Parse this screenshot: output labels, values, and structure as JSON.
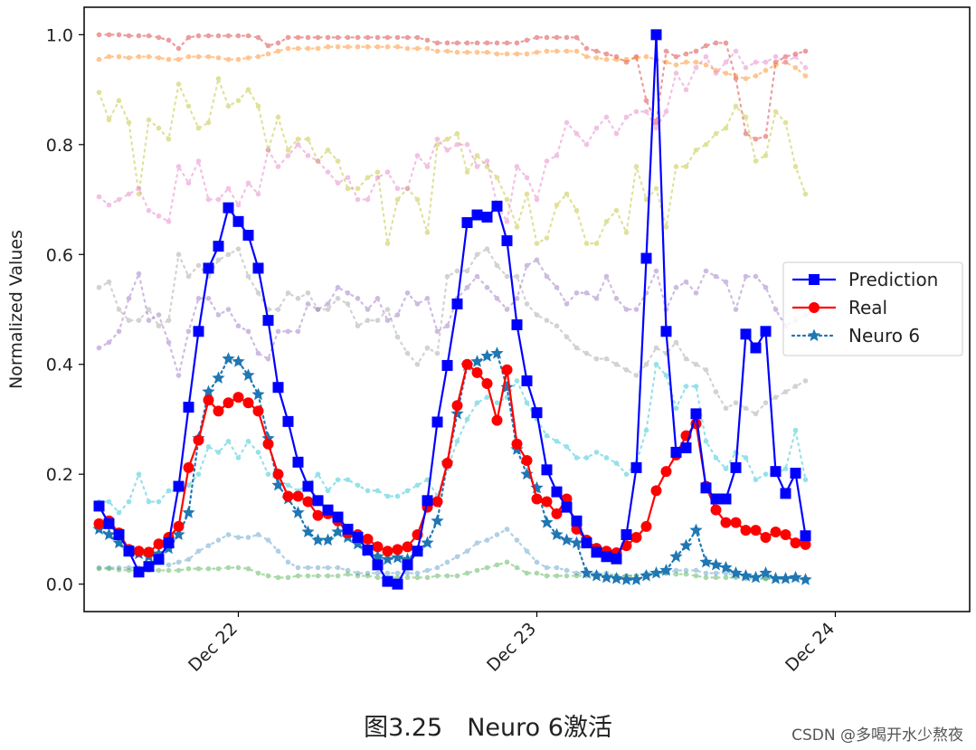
{
  "chart_data": {
    "type": "line",
    "title": "",
    "xlabel": "",
    "ylabel": "Normalized Values",
    "ylim": [
      -0.05,
      1.05
    ],
    "yticks": [
      "0.0",
      "0.2",
      "0.4",
      "0.6",
      "0.8",
      "1.0"
    ],
    "ytick_values": [
      0.0,
      0.2,
      0.4,
      0.6,
      0.8,
      1.0
    ],
    "xticks": [
      "Dec 22",
      "Dec 23",
      "Dec 24"
    ],
    "xtick_values": [
      8,
      38,
      68
    ],
    "x_range": [
      -7.5,
      81.5
    ],
    "x_start": -6,
    "x_step": 1,
    "grid": false,
    "legend_position": "right",
    "series": [
      {
        "name": "Prediction",
        "color": "#0000ff",
        "marker": "square",
        "linestyle": "solid",
        "values": [
          0.142,
          0.11,
          0.09,
          0.06,
          0.022,
          0.032,
          0.045,
          0.075,
          0.178,
          0.322,
          0.46,
          0.575,
          0.615,
          0.685,
          0.66,
          0.635,
          0.575,
          0.48,
          0.358,
          0.296,
          0.222,
          0.178,
          0.152,
          0.135,
          0.122,
          0.1,
          0.085,
          0.062,
          0.035,
          0.005,
          0.0,
          0.035,
          0.06,
          0.152,
          0.295,
          0.398,
          0.51,
          0.658,
          0.672,
          0.668,
          0.688,
          0.625,
          0.472,
          0.37,
          0.312,
          0.208,
          0.168,
          0.14,
          0.115,
          0.075,
          0.058,
          0.05,
          0.046,
          0.09,
          0.212,
          0.593,
          1.0,
          0.46,
          0.24,
          0.248,
          0.31,
          0.175,
          0.155,
          0.155,
          0.212,
          0.455,
          0.43,
          0.46,
          0.205,
          0.165,
          0.202,
          0.088
        ]
      },
      {
        "name": "Real",
        "color": "#ff0000",
        "marker": "circle",
        "linestyle": "solid",
        "values": [
          0.11,
          0.115,
          0.093,
          0.063,
          0.06,
          0.058,
          0.073,
          0.085,
          0.105,
          0.212,
          0.262,
          0.335,
          0.315,
          0.33,
          0.34,
          0.33,
          0.315,
          0.255,
          0.2,
          0.16,
          0.16,
          0.15,
          0.125,
          0.128,
          0.115,
          0.093,
          0.09,
          0.082,
          0.068,
          0.06,
          0.063,
          0.068,
          0.09,
          0.14,
          0.15,
          0.22,
          0.325,
          0.4,
          0.385,
          0.365,
          0.298,
          0.39,
          0.255,
          0.225,
          0.155,
          0.15,
          0.128,
          0.155,
          0.1,
          0.08,
          0.065,
          0.06,
          0.057,
          0.07,
          0.085,
          0.105,
          0.17,
          0.205,
          0.235,
          0.27,
          0.292,
          0.178,
          0.135,
          0.112,
          0.112,
          0.098,
          0.098,
          0.085,
          0.095,
          0.09,
          0.075,
          0.072
        ]
      },
      {
        "name": "Neuro 6",
        "color": "#1f77b4",
        "marker": "star",
        "linestyle": "dotted",
        "values": [
          0.1,
          0.09,
          0.075,
          0.06,
          0.055,
          0.05,
          0.055,
          0.065,
          0.09,
          0.13,
          0.265,
          0.35,
          0.375,
          0.41,
          0.405,
          0.38,
          0.345,
          0.265,
          0.18,
          0.155,
          0.13,
          0.095,
          0.08,
          0.08,
          0.095,
          0.085,
          0.073,
          0.06,
          0.05,
          0.045,
          0.048,
          0.045,
          0.06,
          0.075,
          0.115,
          0.22,
          0.31,
          0.398,
          0.405,
          0.415,
          0.42,
          0.358,
          0.245,
          0.2,
          0.175,
          0.112,
          0.09,
          0.08,
          0.075,
          0.02,
          0.015,
          0.012,
          0.01,
          0.008,
          0.008,
          0.015,
          0.02,
          0.025,
          0.05,
          0.07,
          0.098,
          0.04,
          0.035,
          0.03,
          0.02,
          0.015,
          0.012,
          0.02,
          0.01,
          0.01,
          0.012,
          0.008
        ]
      },
      {
        "color": "#d62728",
        "opacity": 0.45,
        "values": [
          1.0,
          1.0,
          1.0,
          0.998,
          0.998,
          0.998,
          0.995,
          0.99,
          0.975,
          0.995,
          0.998,
          0.998,
          0.998,
          0.998,
          0.998,
          0.998,
          0.995,
          0.98,
          0.985,
          0.995,
          0.995,
          0.995,
          0.995,
          0.995,
          0.995,
          0.995,
          0.995,
          0.995,
          0.995,
          0.995,
          0.995,
          0.995,
          0.995,
          0.99,
          0.985,
          0.985,
          0.985,
          0.985,
          0.985,
          0.985,
          0.985,
          0.985,
          0.985,
          0.99,
          0.995,
          0.995,
          0.995,
          0.995,
          0.995,
          0.975,
          0.97,
          0.965,
          0.96,
          0.95,
          0.96,
          0.88,
          0.84,
          0.97,
          0.96,
          0.965,
          0.97,
          0.98,
          0.985,
          0.985,
          0.92,
          0.82,
          0.81,
          0.815,
          0.95,
          0.96,
          0.965,
          0.97
        ]
      },
      {
        "color": "#ff7f0e",
        "opacity": 0.45,
        "values": [
          0.955,
          0.96,
          0.96,
          0.958,
          0.96,
          0.96,
          0.958,
          0.955,
          0.955,
          0.96,
          0.96,
          0.96,
          0.958,
          0.955,
          0.955,
          0.958,
          0.96,
          0.965,
          0.97,
          0.975,
          0.975,
          0.975,
          0.975,
          0.978,
          0.978,
          0.978,
          0.978,
          0.978,
          0.978,
          0.978,
          0.978,
          0.975,
          0.975,
          0.975,
          0.97,
          0.97,
          0.968,
          0.968,
          0.968,
          0.968,
          0.965,
          0.965,
          0.965,
          0.965,
          0.968,
          0.97,
          0.97,
          0.97,
          0.97,
          0.96,
          0.958,
          0.955,
          0.955,
          0.955,
          0.958,
          0.96,
          0.955,
          0.95,
          0.945,
          0.95,
          0.95,
          0.945,
          0.935,
          0.93,
          0.925,
          0.92,
          0.925,
          0.935,
          0.945,
          0.95,
          0.94,
          0.925
        ]
      },
      {
        "color": "#bcbd22",
        "opacity": 0.45,
        "values": [
          0.895,
          0.845,
          0.88,
          0.84,
          0.71,
          0.845,
          0.83,
          0.81,
          0.91,
          0.87,
          0.83,
          0.84,
          0.92,
          0.87,
          0.88,
          0.9,
          0.87,
          0.79,
          0.85,
          0.79,
          0.81,
          0.81,
          0.77,
          0.79,
          0.77,
          0.72,
          0.72,
          0.74,
          0.75,
          0.62,
          0.7,
          0.72,
          0.7,
          0.64,
          0.8,
          0.81,
          0.82,
          0.75,
          0.78,
          0.76,
          0.74,
          0.7,
          0.65,
          0.71,
          0.62,
          0.63,
          0.69,
          0.71,
          0.68,
          0.62,
          0.62,
          0.66,
          0.68,
          0.64,
          0.76,
          0.7,
          0.72,
          0.65,
          0.76,
          0.76,
          0.79,
          0.8,
          0.82,
          0.83,
          0.87,
          0.85,
          0.77,
          0.78,
          0.86,
          0.84,
          0.76,
          0.71
        ]
      },
      {
        "color": "#e377c2",
        "opacity": 0.45,
        "values": [
          0.705,
          0.69,
          0.7,
          0.71,
          0.72,
          0.68,
          0.67,
          0.66,
          0.76,
          0.73,
          0.77,
          0.7,
          0.7,
          0.72,
          0.69,
          0.73,
          0.71,
          0.79,
          0.76,
          0.78,
          0.8,
          0.78,
          0.77,
          0.75,
          0.73,
          0.74,
          0.7,
          0.7,
          0.74,
          0.75,
          0.72,
          0.72,
          0.78,
          0.76,
          0.81,
          0.79,
          0.8,
          0.8,
          0.76,
          0.77,
          0.69,
          0.66,
          0.76,
          0.74,
          0.7,
          0.77,
          0.78,
          0.84,
          0.82,
          0.8,
          0.83,
          0.85,
          0.82,
          0.85,
          0.86,
          0.86,
          0.83,
          0.86,
          0.93,
          0.9,
          0.94,
          0.96,
          0.93,
          0.95,
          0.97,
          0.94,
          0.95,
          0.95,
          0.96,
          0.95,
          0.96,
          0.94
        ]
      },
      {
        "color": "#9467bd",
        "opacity": 0.45,
        "values": [
          0.43,
          0.44,
          0.46,
          0.52,
          0.565,
          0.48,
          0.49,
          0.44,
          0.38,
          0.46,
          0.52,
          0.52,
          0.49,
          0.5,
          0.47,
          0.46,
          0.42,
          0.41,
          0.46,
          0.46,
          0.46,
          0.51,
          0.5,
          0.51,
          0.54,
          0.53,
          0.52,
          0.5,
          0.52,
          0.48,
          0.49,
          0.53,
          0.51,
          0.52,
          0.46,
          0.47,
          0.52,
          0.54,
          0.56,
          0.54,
          0.52,
          0.5,
          0.52,
          0.58,
          0.59,
          0.56,
          0.54,
          0.51,
          0.53,
          0.53,
          0.52,
          0.56,
          0.52,
          0.5,
          0.5,
          0.53,
          0.57,
          0.5,
          0.54,
          0.55,
          0.53,
          0.57,
          0.56,
          0.55,
          0.5,
          0.56,
          0.56,
          0.54,
          0.5,
          0.47,
          0.48,
          0.49
        ]
      },
      {
        "color": "#7f7f7f",
        "opacity": 0.35,
        "values": [
          0.54,
          0.55,
          0.5,
          0.48,
          0.48,
          0.5,
          0.47,
          0.48,
          0.6,
          0.56,
          0.58,
          0.56,
          0.59,
          0.6,
          0.61,
          0.56,
          0.53,
          0.5,
          0.5,
          0.53,
          0.52,
          0.53,
          0.5,
          0.5,
          0.52,
          0.51,
          0.47,
          0.48,
          0.48,
          0.5,
          0.45,
          0.42,
          0.4,
          0.43,
          0.42,
          0.56,
          0.57,
          0.57,
          0.6,
          0.61,
          0.58,
          0.56,
          0.56,
          0.51,
          0.49,
          0.48,
          0.47,
          0.45,
          0.43,
          0.42,
          0.41,
          0.41,
          0.4,
          0.39,
          0.38,
          0.4,
          0.43,
          0.42,
          0.44,
          0.41,
          0.4,
          0.39,
          0.35,
          0.32,
          0.33,
          0.32,
          0.31,
          0.33,
          0.34,
          0.35,
          0.36,
          0.37
        ]
      },
      {
        "color": "#17becf",
        "opacity": 0.45,
        "values": [
          0.15,
          0.15,
          0.13,
          0.15,
          0.2,
          0.15,
          0.15,
          0.17,
          0.17,
          0.18,
          0.2,
          0.25,
          0.24,
          0.26,
          0.23,
          0.26,
          0.24,
          0.2,
          0.19,
          0.18,
          0.17,
          0.18,
          0.2,
          0.17,
          0.19,
          0.19,
          0.18,
          0.17,
          0.17,
          0.16,
          0.16,
          0.17,
          0.18,
          0.19,
          0.16,
          0.21,
          0.26,
          0.3,
          0.33,
          0.34,
          0.33,
          0.34,
          0.37,
          0.33,
          0.3,
          0.27,
          0.26,
          0.25,
          0.23,
          0.23,
          0.24,
          0.23,
          0.22,
          0.2,
          0.22,
          0.28,
          0.4,
          0.38,
          0.32,
          0.36,
          0.36,
          0.26,
          0.23,
          0.21,
          0.24,
          0.23,
          0.19,
          0.2,
          0.2,
          0.21,
          0.28,
          0.19
        ]
      },
      {
        "color": "#1f77b4",
        "opacity": 0.35,
        "values": [
          0.03,
          0.03,
          0.03,
          0.03,
          0.03,
          0.03,
          0.04,
          0.035,
          0.04,
          0.045,
          0.06,
          0.07,
          0.08,
          0.09,
          0.085,
          0.085,
          0.09,
          0.08,
          0.06,
          0.04,
          0.03,
          0.03,
          0.03,
          0.03,
          0.03,
          0.025,
          0.02,
          0.02,
          0.02,
          0.02,
          0.02,
          0.02,
          0.02,
          0.025,
          0.03,
          0.04,
          0.05,
          0.06,
          0.075,
          0.08,
          0.09,
          0.1,
          0.08,
          0.06,
          0.04,
          0.03,
          0.03,
          0.025,
          0.02,
          0.02,
          0.02,
          0.02,
          0.015,
          0.015,
          0.015,
          0.02,
          0.02,
          0.02,
          0.025,
          0.025,
          0.025,
          0.02,
          0.02,
          0.02,
          0.015,
          0.015,
          0.01,
          0.01,
          0.01,
          0.01,
          0.01,
          0.01
        ]
      },
      {
        "color": "#2ca02c",
        "opacity": 0.4,
        "values": [
          0.028,
          0.028,
          0.026,
          0.025,
          0.025,
          0.025,
          0.025,
          0.025,
          0.025,
          0.028,
          0.028,
          0.028,
          0.028,
          0.03,
          0.03,
          0.028,
          0.02,
          0.015,
          0.012,
          0.012,
          0.015,
          0.015,
          0.015,
          0.015,
          0.015,
          0.018,
          0.015,
          0.015,
          0.012,
          0.01,
          0.012,
          0.012,
          0.012,
          0.012,
          0.015,
          0.015,
          0.015,
          0.02,
          0.025,
          0.03,
          0.035,
          0.04,
          0.03,
          0.02,
          0.02,
          0.015,
          0.015,
          0.015,
          0.015,
          0.015,
          0.015,
          0.015,
          0.015,
          0.015,
          0.015,
          0.018,
          0.02,
          0.02,
          0.018,
          0.018,
          0.015,
          0.012,
          0.012,
          0.012,
          0.012,
          0.01,
          0.01,
          0.01,
          0.01,
          0.01,
          0.01,
          0.01
        ]
      }
    ]
  },
  "caption": "图3.25　Neuro 6激活",
  "watermark": "CSDN @多喝开水少熬夜"
}
